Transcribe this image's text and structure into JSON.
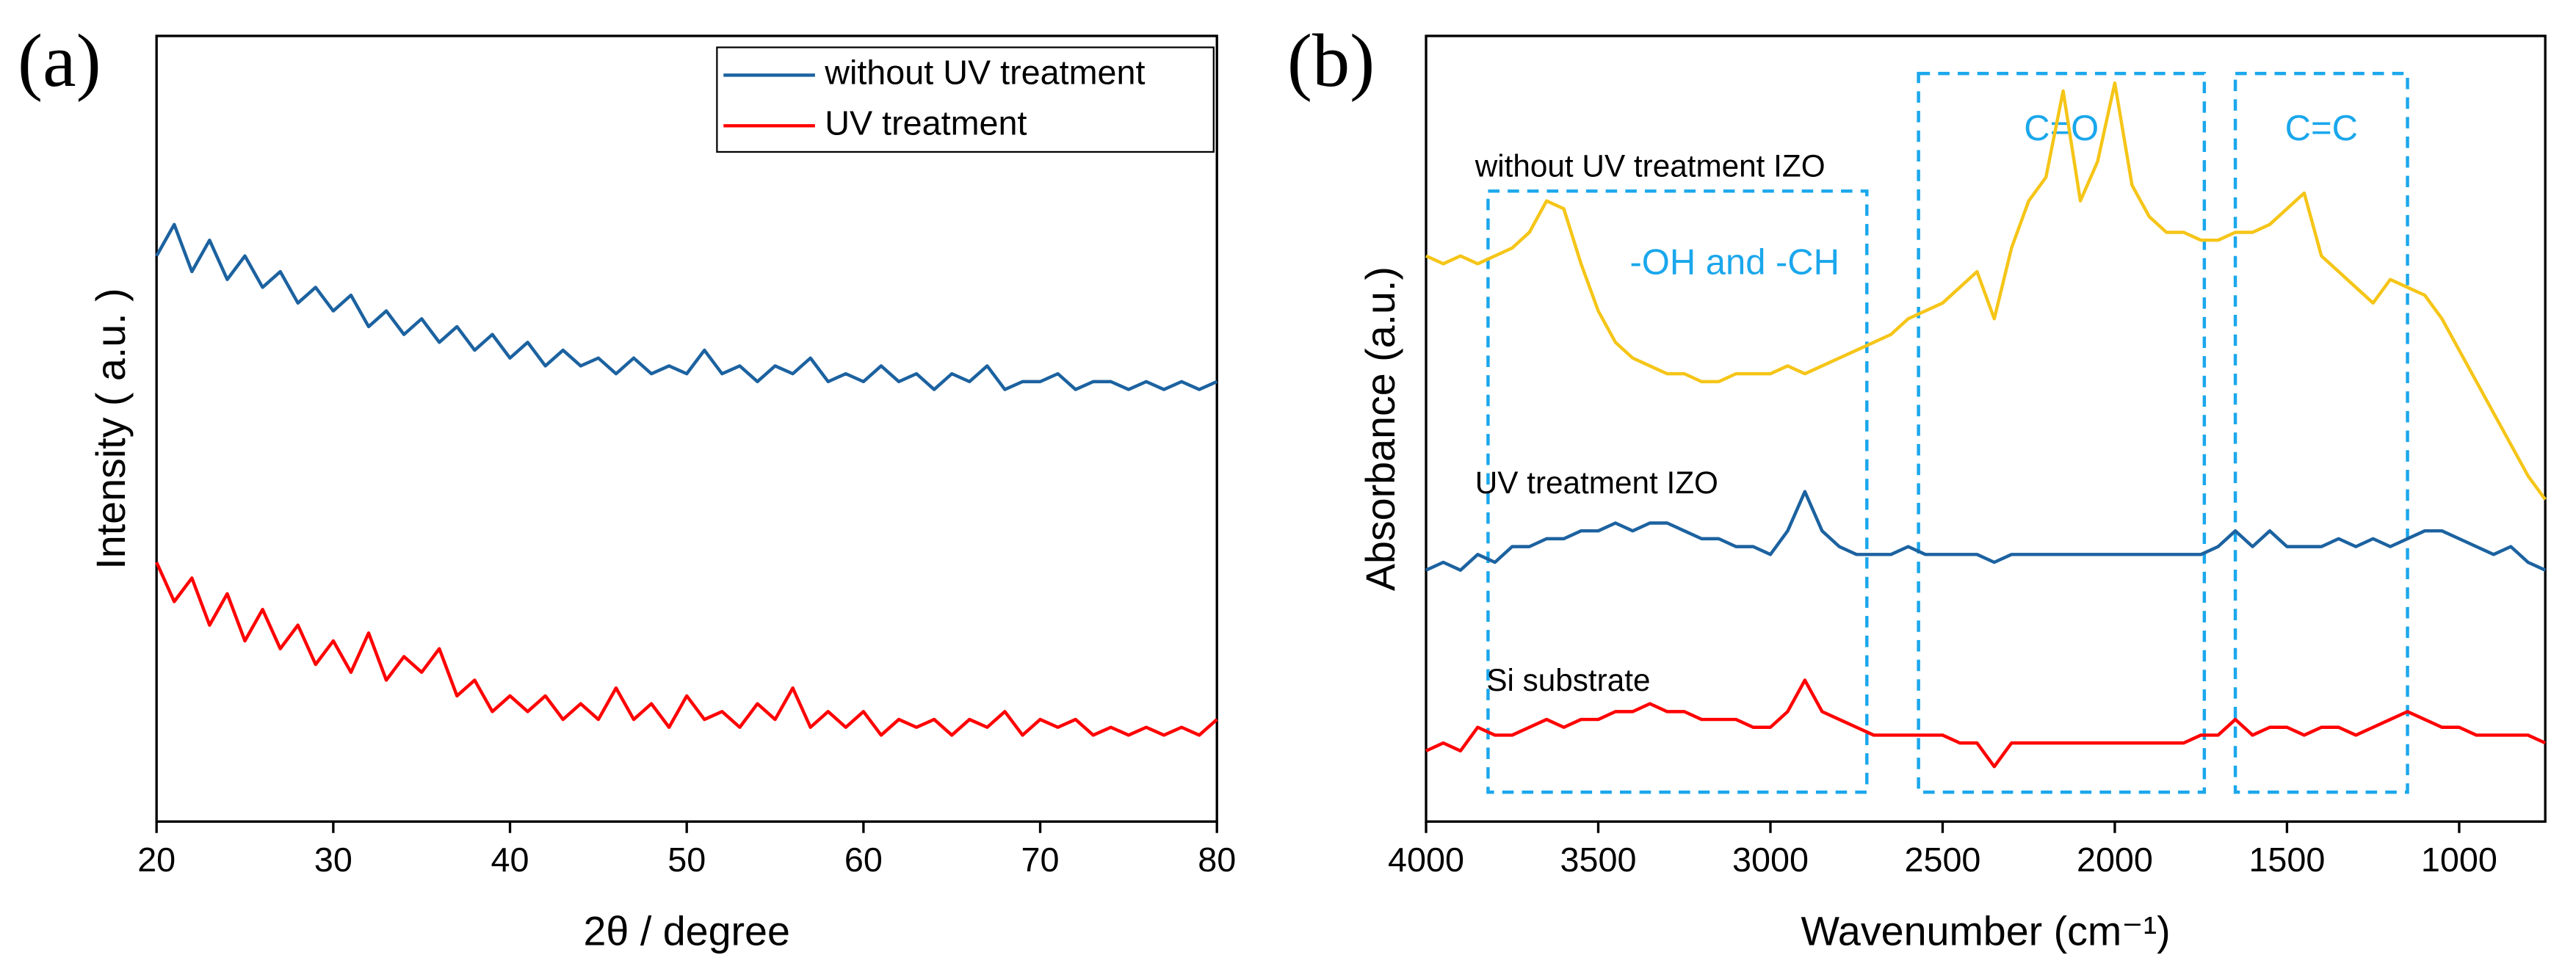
{
  "chart_data": [
    {
      "type": "line",
      "panel": "(a)",
      "xlabel": "2θ / degree",
      "ylabel": "Intensity ( a.u. )",
      "xlim": [
        20,
        80
      ],
      "xticks": [
        20,
        30,
        40,
        50,
        60,
        70,
        80
      ],
      "ylim": [
        0,
        100
      ],
      "legend": "top-right",
      "x": [
        20,
        21,
        22,
        23,
        24,
        25,
        26,
        27,
        28,
        29,
        30,
        31,
        32,
        33,
        34,
        35,
        36,
        37,
        38,
        39,
        40,
        41,
        42,
        43,
        44,
        45,
        46,
        47,
        48,
        49,
        50,
        51,
        52,
        53,
        54,
        55,
        56,
        57,
        58,
        59,
        60,
        61,
        62,
        63,
        64,
        65,
        66,
        67,
        68,
        69,
        70,
        71,
        72,
        73,
        74,
        75,
        76,
        77,
        78,
        79,
        80
      ],
      "series": [
        {
          "name": "without UV treatment",
          "color": "#1c62a0",
          "values": [
            72,
            76,
            70,
            74,
            69,
            72,
            68,
            70,
            66,
            68,
            65,
            67,
            63,
            65,
            62,
            64,
            61,
            63,
            60,
            62,
            59,
            61,
            58,
            60,
            58,
            59,
            57,
            59,
            57,
            58,
            57,
            60,
            57,
            58,
            56,
            58,
            57,
            59,
            56,
            57,
            56,
            58,
            56,
            57,
            55,
            57,
            56,
            58,
            55,
            56,
            56,
            57,
            55,
            56,
            56,
            55,
            56,
            55,
            56,
            55,
            56
          ]
        },
        {
          "name": "UV treatment",
          "color": "#ff0000",
          "values": [
            33,
            28,
            31,
            25,
            29,
            23,
            27,
            22,
            25,
            20,
            23,
            19,
            24,
            18,
            21,
            19,
            22,
            16,
            18,
            14,
            16,
            14,
            16,
            13,
            15,
            13,
            17,
            13,
            15,
            12,
            16,
            13,
            14,
            12,
            15,
            13,
            17,
            12,
            14,
            12,
            14,
            11,
            13,
            12,
            13,
            11,
            13,
            12,
            14,
            11,
            13,
            12,
            13,
            11,
            12,
            11,
            12,
            11,
            12,
            11,
            13
          ]
        }
      ]
    },
    {
      "type": "line",
      "panel": "(b)",
      "xlabel": "Wavenumber (cm⁻¹)",
      "ylabel": "Absorbance (a.u.)",
      "xlim": [
        4000,
        750
      ],
      "xticks": [
        4000,
        3500,
        3000,
        2500,
        2000,
        1500,
        1000
      ],
      "ylim": [
        0,
        100
      ],
      "x": [
        4000,
        3950,
        3900,
        3850,
        3800,
        3750,
        3700,
        3650,
        3600,
        3550,
        3500,
        3450,
        3400,
        3350,
        3300,
        3250,
        3200,
        3150,
        3100,
        3050,
        3000,
        2950,
        2900,
        2850,
        2800,
        2750,
        2700,
        2650,
        2600,
        2550,
        2500,
        2450,
        2400,
        2350,
        2300,
        2250,
        2200,
        2150,
        2100,
        2050,
        2000,
        1950,
        1900,
        1850,
        1800,
        1750,
        1700,
        1650,
        1600,
        1550,
        1500,
        1450,
        1400,
        1350,
        1300,
        1250,
        1200,
        1150,
        1100,
        1050,
        1000,
        950,
        900,
        850,
        800,
        750
      ],
      "series": [
        {
          "name": "without UV treatment IZO",
          "color": "#f5c518",
          "values": [
            72,
            71,
            72,
            71,
            72,
            73,
            75,
            79,
            78,
            71,
            65,
            61,
            59,
            58,
            57,
            57,
            56,
            56,
            57,
            57,
            57,
            58,
            57,
            58,
            59,
            60,
            61,
            62,
            64,
            65,
            66,
            68,
            70,
            64,
            73,
            79,
            82,
            93,
            79,
            84,
            94,
            81,
            77,
            75,
            75,
            74,
            74,
            75,
            75,
            76,
            78,
            80,
            72,
            70,
            68,
            66,
            69,
            68,
            67,
            64,
            60,
            56,
            52,
            48,
            44,
            41
          ]
        },
        {
          "name": "UV treatment IZO",
          "color": "#1c62a0",
          "values": [
            32,
            33,
            32,
            34,
            33,
            35,
            35,
            36,
            36,
            37,
            37,
            38,
            37,
            38,
            38,
            37,
            36,
            36,
            35,
            35,
            34,
            37,
            42,
            37,
            35,
            34,
            34,
            34,
            35,
            34,
            34,
            34,
            34,
            33,
            34,
            34,
            34,
            34,
            34,
            34,
            34,
            34,
            34,
            34,
            34,
            34,
            35,
            37,
            35,
            37,
            35,
            35,
            35,
            36,
            35,
            36,
            35,
            36,
            37,
            37,
            36,
            35,
            34,
            35,
            33,
            32
          ]
        },
        {
          "name": "Si substrate",
          "color": "#ff0000",
          "values": [
            9,
            10,
            9,
            12,
            11,
            11,
            12,
            13,
            12,
            13,
            13,
            14,
            14,
            15,
            14,
            14,
            13,
            13,
            13,
            12,
            12,
            14,
            18,
            14,
            13,
            12,
            11,
            11,
            11,
            11,
            11,
            10,
            10,
            7,
            10,
            10,
            10,
            10,
            10,
            10,
            10,
            10,
            10,
            10,
            10,
            11,
            11,
            13,
            11,
            12,
            12,
            11,
            12,
            12,
            11,
            12,
            13,
            14,
            13,
            12,
            12,
            11,
            11,
            11,
            11,
            10
          ]
        }
      ],
      "regions": [
        {
          "label": "-OH and -CH",
          "xrange": [
            3820,
            2720
          ]
        },
        {
          "label": "C=O",
          "xrange": [
            2570,
            1740
          ]
        },
        {
          "label": "C=C",
          "xrange": [
            1650,
            1150
          ]
        }
      ]
    }
  ]
}
